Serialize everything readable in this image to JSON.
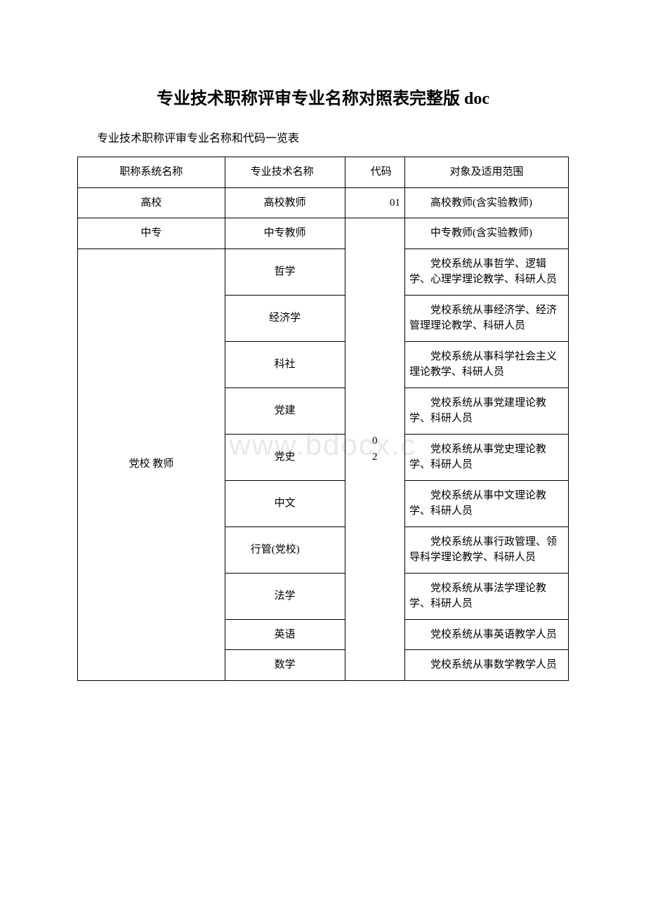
{
  "title": "专业技术职称评审专业名称对照表完整版 doc",
  "subtitle": "专业技术职称评审专业名称和代码一览表",
  "watermark": "www.bdocx.c",
  "headers": {
    "col1": "职称系统名称",
    "col2": "专业技术名称",
    "col3": "代码",
    "col4": "对象及适用范围"
  },
  "rows": [
    {
      "system": "高校",
      "tech": "高校教师",
      "code": "01",
      "scope": "高校教师(含实验教师)"
    },
    {
      "system": "中专",
      "tech": "中专教师",
      "code_merged": "02",
      "scope": "中专教师(含实验教师)"
    },
    {
      "system": "党校 教师",
      "items": [
        {
          "tech": "哲学",
          "scope": "党校系统从事哲学、逻辑学、心理学理论教学、科研人员"
        },
        {
          "tech": "经济学",
          "scope": "党校系统从事经济学、经济管理理论教学、科研人员"
        },
        {
          "tech": "科社",
          "scope": "党校系统从事科学社会主义理论教学、科研人员"
        },
        {
          "tech": "党建",
          "scope": "党校系统从事党建理论教学、科研人员"
        },
        {
          "tech": "党史",
          "scope": "党校系统从事党史理论教学、科研人员"
        },
        {
          "tech": "中文",
          "scope": "党校系统从事中文理论教学、科研人员"
        },
        {
          "tech": "行管(党校)",
          "scope": "党校系统从事行政管理、领导科学理论教学、科研人员"
        },
        {
          "tech": "法学",
          "scope": "党校系统从事法学理论教学、科研人员"
        },
        {
          "tech": "英语",
          "scope": "党校系统从事英语教学人员"
        },
        {
          "tech": "数学",
          "scope": "党校系统从事数学教学人员"
        }
      ]
    }
  ]
}
